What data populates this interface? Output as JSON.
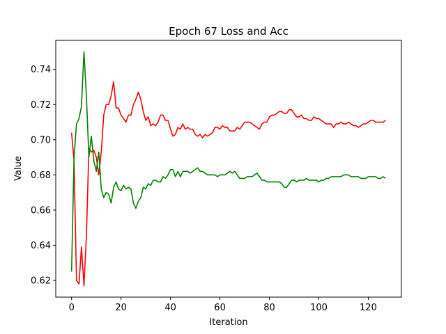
{
  "chart_data": {
    "type": "line",
    "title": "Epoch 67 Loss and Acc",
    "xlabel": "Iteration",
    "ylabel": "Value",
    "xlim": [
      -6.4,
      133.4
    ],
    "ylim": [
      0.6105,
      0.7565
    ],
    "xticks": [
      0,
      20,
      40,
      60,
      80,
      100,
      120
    ],
    "yticks": [
      0.62,
      0.64,
      0.66,
      0.68,
      0.7,
      0.72,
      0.74
    ],
    "ytick_labels": [
      "0.62",
      "0.64",
      "0.66",
      "0.68",
      "0.70",
      "0.72",
      "0.74"
    ],
    "grid": false,
    "legend": "none",
    "x": [
      0,
      1,
      2,
      3,
      4,
      5,
      6,
      7,
      8,
      9,
      10,
      11,
      12,
      13,
      14,
      15,
      16,
      17,
      18,
      19,
      20,
      21,
      22,
      23,
      24,
      25,
      26,
      27,
      28,
      29,
      30,
      31,
      32,
      33,
      34,
      35,
      36,
      37,
      38,
      39,
      40,
      41,
      42,
      43,
      44,
      45,
      46,
      47,
      48,
      49,
      50,
      51,
      52,
      53,
      54,
      55,
      56,
      57,
      58,
      59,
      60,
      61,
      62,
      63,
      64,
      65,
      66,
      67,
      68,
      69,
      70,
      71,
      72,
      73,
      74,
      75,
      76,
      77,
      78,
      79,
      80,
      81,
      82,
      83,
      84,
      85,
      86,
      87,
      88,
      89,
      90,
      91,
      92,
      93,
      94,
      95,
      96,
      97,
      98,
      99,
      100,
      101,
      102,
      103,
      104,
      105,
      106,
      107,
      108,
      109,
      110,
      111,
      112,
      113,
      114,
      115,
      116,
      117,
      118,
      119,
      120,
      121,
      122,
      123,
      124,
      125,
      126,
      127
    ],
    "series": [
      {
        "color": "#ff0000",
        "values": [
          0.704,
          0.688,
          0.62,
          0.618,
          0.639,
          0.617,
          0.645,
          0.695,
          0.693,
          0.694,
          0.69,
          0.68,
          0.693,
          0.714,
          0.72,
          0.72,
          0.725,
          0.733,
          0.718,
          0.718,
          0.714,
          0.712,
          0.71,
          0.714,
          0.714,
          0.72,
          0.723,
          0.727,
          0.723,
          0.716,
          0.711,
          0.713,
          0.708,
          0.709,
          0.708,
          0.71,
          0.714,
          0.714,
          0.711,
          0.711,
          0.706,
          0.702,
          0.703,
          0.707,
          0.706,
          0.709,
          0.706,
          0.707,
          0.706,
          0.706,
          0.703,
          0.702,
          0.703,
          0.701,
          0.703,
          0.702,
          0.703,
          0.704,
          0.707,
          0.707,
          0.706,
          0.708,
          0.707,
          0.707,
          0.705,
          0.705,
          0.705,
          0.707,
          0.706,
          0.708,
          0.71,
          0.71,
          0.71,
          0.709,
          0.708,
          0.707,
          0.706,
          0.709,
          0.71,
          0.71,
          0.713,
          0.714,
          0.714,
          0.715,
          0.716,
          0.716,
          0.715,
          0.715,
          0.717,
          0.717,
          0.715,
          0.713,
          0.713,
          0.714,
          0.712,
          0.712,
          0.711,
          0.711,
          0.713,
          0.712,
          0.712,
          0.711,
          0.71,
          0.709,
          0.709,
          0.709,
          0.707,
          0.709,
          0.709,
          0.71,
          0.709,
          0.709,
          0.71,
          0.709,
          0.708,
          0.708,
          0.707,
          0.708,
          0.709,
          0.709,
          0.71,
          0.711,
          0.711,
          0.71,
          0.71,
          0.71,
          0.71,
          0.711
        ]
      },
      {
        "color": "#008000",
        "values": [
          0.625,
          0.69,
          0.709,
          0.712,
          0.719,
          0.75,
          0.725,
          0.69,
          0.702,
          0.688,
          0.682,
          0.693,
          0.672,
          0.667,
          0.67,
          0.669,
          0.664,
          0.673,
          0.676,
          0.672,
          0.671,
          0.674,
          0.672,
          0.673,
          0.672,
          0.664,
          0.661,
          0.665,
          0.667,
          0.673,
          0.672,
          0.675,
          0.674,
          0.677,
          0.677,
          0.676,
          0.676,
          0.679,
          0.678,
          0.68,
          0.683,
          0.683,
          0.679,
          0.682,
          0.679,
          0.682,
          0.682,
          0.682,
          0.681,
          0.682,
          0.683,
          0.684,
          0.682,
          0.682,
          0.681,
          0.68,
          0.68,
          0.68,
          0.68,
          0.679,
          0.68,
          0.68,
          0.68,
          0.681,
          0.682,
          0.681,
          0.682,
          0.68,
          0.678,
          0.678,
          0.678,
          0.679,
          0.679,
          0.679,
          0.68,
          0.681,
          0.679,
          0.677,
          0.677,
          0.676,
          0.676,
          0.676,
          0.676,
          0.676,
          0.676,
          0.675,
          0.673,
          0.673,
          0.675,
          0.677,
          0.677,
          0.676,
          0.677,
          0.677,
          0.677,
          0.678,
          0.677,
          0.677,
          0.677,
          0.677,
          0.676,
          0.677,
          0.677,
          0.678,
          0.678,
          0.679,
          0.679,
          0.679,
          0.679,
          0.679,
          0.68,
          0.68,
          0.68,
          0.679,
          0.679,
          0.679,
          0.679,
          0.678,
          0.678,
          0.678,
          0.679,
          0.679,
          0.679,
          0.679,
          0.678,
          0.678,
          0.679,
          0.678
        ]
      }
    ]
  }
}
